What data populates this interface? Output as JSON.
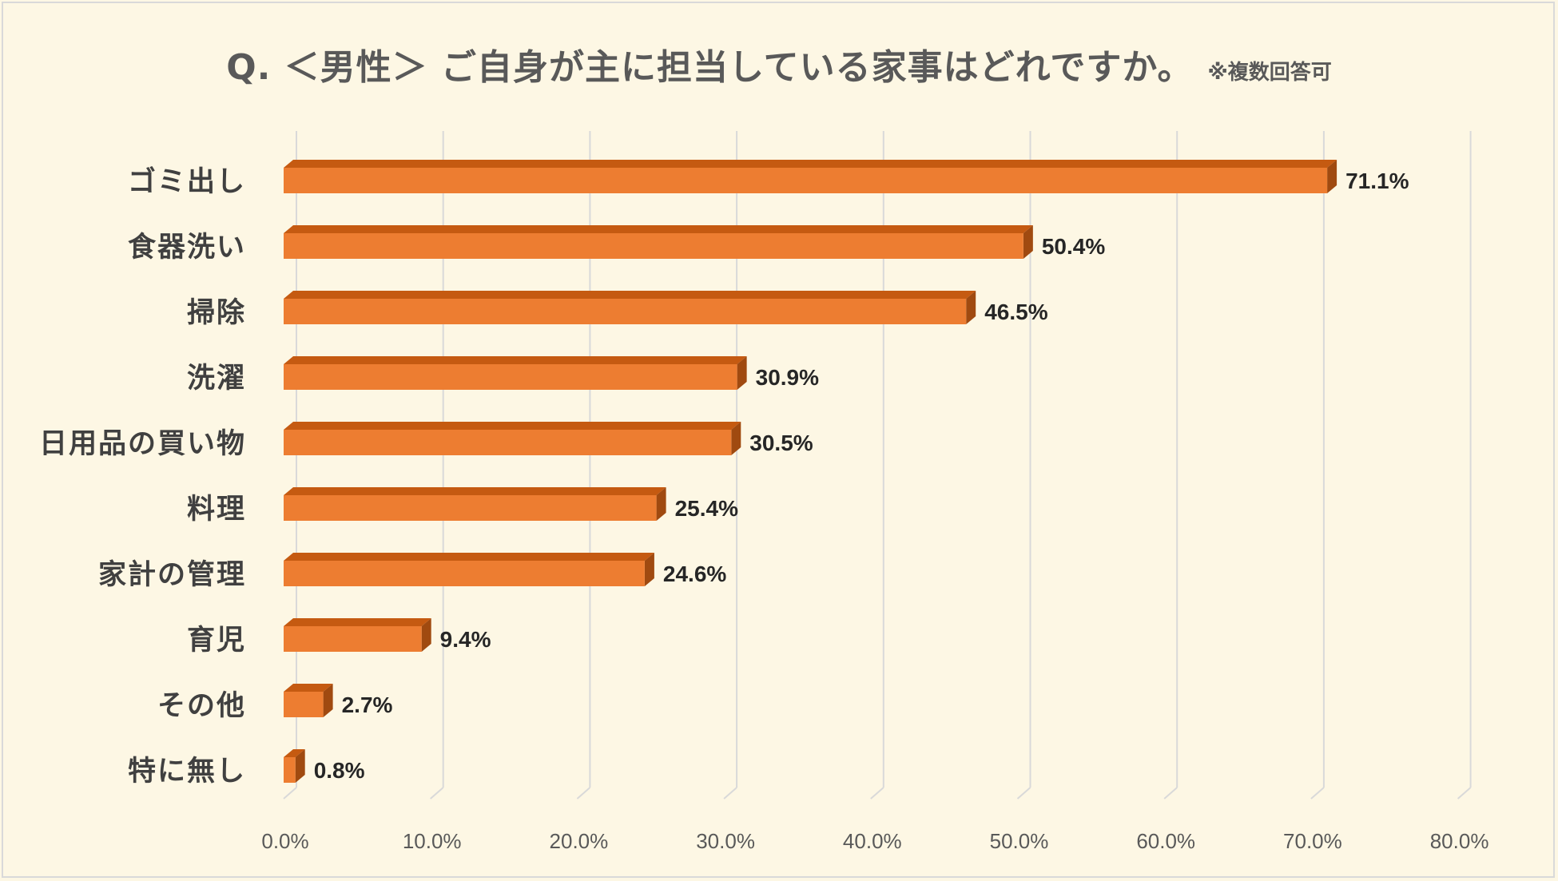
{
  "chart_data": {
    "type": "bar",
    "orientation": "horizontal",
    "title": "Q. ＜男性＞ ご自身が主に担当している家事はどれですか。",
    "note": "※複数回答可",
    "categories": [
      "ゴミ出し",
      "食器洗い",
      "掃除",
      "洗濯",
      "日用品の買い物",
      "料理",
      "家計の管理",
      "育児",
      "その他",
      "特に無し"
    ],
    "values": [
      71.1,
      50.4,
      46.5,
      30.9,
      30.5,
      25.4,
      24.6,
      9.4,
      2.7,
      0.8
    ],
    "value_labels": [
      "71.1%",
      "50.4%",
      "46.5%",
      "30.9%",
      "30.5%",
      "25.4%",
      "24.6%",
      "9.4%",
      "2.7%",
      "0.8%"
    ],
    "xlim": [
      0,
      80
    ],
    "ticks": [
      0,
      10,
      20,
      30,
      40,
      50,
      60,
      70,
      80
    ],
    "tick_labels": [
      "0.0%",
      "10.0%",
      "20.0%",
      "30.0%",
      "40.0%",
      "50.0%",
      "60.0%",
      "70.0%",
      "80.0%"
    ],
    "grid": true,
    "colors": {
      "bar": "#ed7d31",
      "bar_top": "#c55a11",
      "bar_side": "#a04a10",
      "grid": "#d9d9d9",
      "text": "#404040",
      "value_text": "#262626",
      "title": "#595959"
    }
  }
}
